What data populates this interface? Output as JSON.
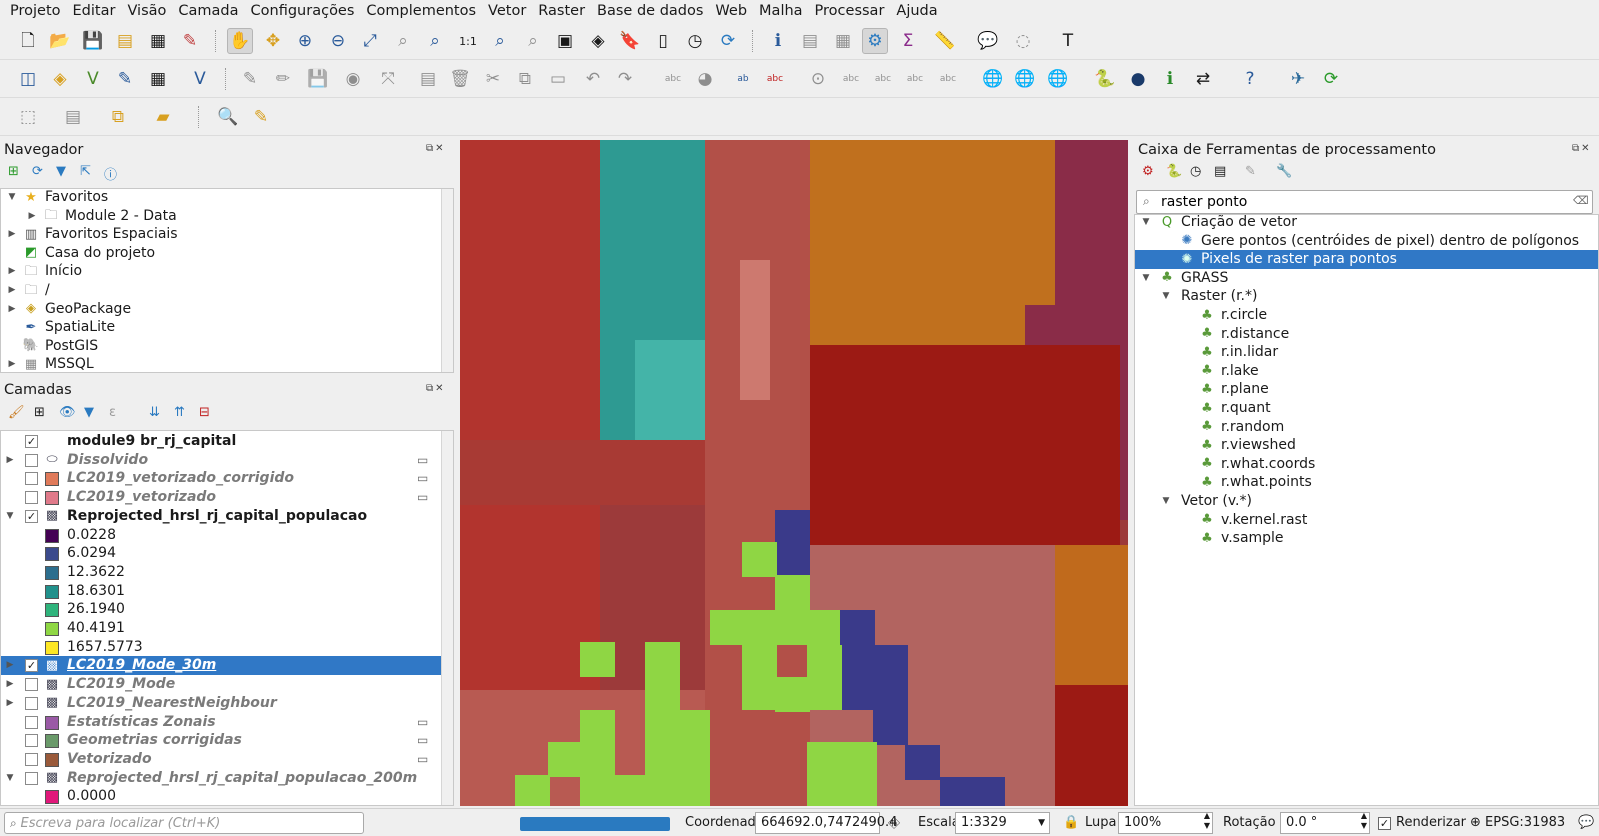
{
  "menu": [
    "Projeto",
    "Editar",
    "Visão",
    "Camada",
    "Configurações",
    "Complementos",
    "Vetor",
    "Raster",
    "Base de dados",
    "Web",
    "Malha",
    "Processar",
    "Ajuda"
  ],
  "navigator": {
    "title": "Navegador",
    "items": [
      {
        "label": "Favoritos",
        "icon": "star-icon",
        "expanded": true
      },
      {
        "label": "Module 2 - Data",
        "icon": "folder-icon"
      },
      {
        "label": "Favoritos Espaciais",
        "icon": "spatial-bookmark-icon"
      },
      {
        "label": "Casa do projeto",
        "icon": "project-home-icon"
      },
      {
        "label": "Início",
        "icon": "folder-icon"
      },
      {
        "label": "/",
        "icon": "folder-icon"
      },
      {
        "label": "GeoPackage",
        "icon": "geopackage-icon"
      },
      {
        "label": "SpatiaLite",
        "icon": "spatialite-icon"
      },
      {
        "label": "PostGIS",
        "icon": "postgis-icon"
      },
      {
        "label": "MSSQL",
        "icon": "mssql-icon"
      }
    ]
  },
  "layers": {
    "title": "Camadas",
    "items": [
      {
        "label": "module9 br_rj_capital",
        "checked": true,
        "style": "bold"
      },
      {
        "label": "Dissolvido",
        "checked": false,
        "style": "italic"
      },
      {
        "label": "LC2019_vetorizado_corrigido",
        "checked": false,
        "style": "italic",
        "swatch": "#e07a5a"
      },
      {
        "label": "LC2019_vetorizado",
        "checked": false,
        "style": "italic",
        "swatch": "#e07a8a"
      },
      {
        "label": "Reprojected_hrsl_rj_capital_populacao",
        "checked": true,
        "style": "bold"
      },
      {
        "label": "0.0228",
        "swatch": "#440154"
      },
      {
        "label": "6.0294",
        "swatch": "#3b4a8c"
      },
      {
        "label": "12.3622",
        "swatch": "#2c6e8e"
      },
      {
        "label": "18.6301",
        "swatch": "#21918c"
      },
      {
        "label": "26.1940",
        "swatch": "#2fb47c"
      },
      {
        "label": "40.4191",
        "swatch": "#8fd744"
      },
      {
        "label": "1657.5773",
        "swatch": "#fde725"
      },
      {
        "label": "LC2019_Mode_30m",
        "checked": true,
        "style": "selected"
      },
      {
        "label": "LC2019_Mode",
        "checked": false,
        "style": "italic"
      },
      {
        "label": "LC2019_NearestNeighbour",
        "checked": false,
        "style": "italic"
      },
      {
        "label": "Estatísticas Zonais",
        "checked": false,
        "style": "italic",
        "swatch": "#9a5aa6"
      },
      {
        "label": "Geometrias corrigidas",
        "checked": false,
        "style": "italic",
        "swatch": "#6a9a6a"
      },
      {
        "label": "Vetorizado",
        "checked": false,
        "style": "italic",
        "swatch": "#9a5a3a"
      },
      {
        "label": "Reprojected_hrsl_rj_capital_populacao_200m",
        "checked": false,
        "style": "italic"
      },
      {
        "label": "0.0000",
        "swatch": "#e0187a"
      }
    ]
  },
  "processing": {
    "title": "Caixa de Ferramentas de processamento",
    "search_value": "raster ponto",
    "tree": [
      {
        "label": "Criação de vetor",
        "level": 0,
        "icon": "qgis-icon",
        "expanded": true
      },
      {
        "label": "Gere pontos (centróides de pixel) dentro de polígonos",
        "level": 1,
        "icon": "gear-icon"
      },
      {
        "label": "Pixels de raster para pontos",
        "level": 1,
        "icon": "gear-icon",
        "selected": true
      },
      {
        "label": "GRASS",
        "level": 0,
        "icon": "grass-icon",
        "expanded": true
      },
      {
        "label": "Raster (r.*)",
        "level": 1,
        "expanded": true
      },
      {
        "label": "r.circle",
        "level": 2,
        "icon": "grass-icon"
      },
      {
        "label": "r.distance",
        "level": 2,
        "icon": "grass-icon"
      },
      {
        "label": "r.in.lidar",
        "level": 2,
        "icon": "grass-icon"
      },
      {
        "label": "r.lake",
        "level": 2,
        "icon": "grass-icon"
      },
      {
        "label": "r.plane",
        "level": 2,
        "icon": "grass-icon"
      },
      {
        "label": "r.quant",
        "level": 2,
        "icon": "grass-icon"
      },
      {
        "label": "r.random",
        "level": 2,
        "icon": "grass-icon"
      },
      {
        "label": "r.viewshed",
        "level": 2,
        "icon": "grass-icon"
      },
      {
        "label": "r.what.coords",
        "level": 2,
        "icon": "grass-icon"
      },
      {
        "label": "r.what.points",
        "level": 2,
        "icon": "grass-icon"
      },
      {
        "label": "Vetor (v.*)",
        "level": 1,
        "expanded": true
      },
      {
        "label": "v.kernel.rast",
        "level": 2,
        "icon": "grass-icon"
      },
      {
        "label": "v.sample",
        "level": 2,
        "icon": "grass-icon"
      }
    ]
  },
  "status": {
    "locator_placeholder": "Escreva para localizar (Ctrl+K)",
    "coord_label": "Coordenada",
    "coord_value": "664692.0,7472490.4",
    "scale_label": "Escala",
    "scale_value": "1:3329",
    "magnifier_label": "Lupa",
    "magnifier_value": "100%",
    "rotation_label": "Rotação",
    "rotation_value": "0.0 °",
    "render_label": "Renderizar",
    "crs": "EPSG:31983"
  }
}
